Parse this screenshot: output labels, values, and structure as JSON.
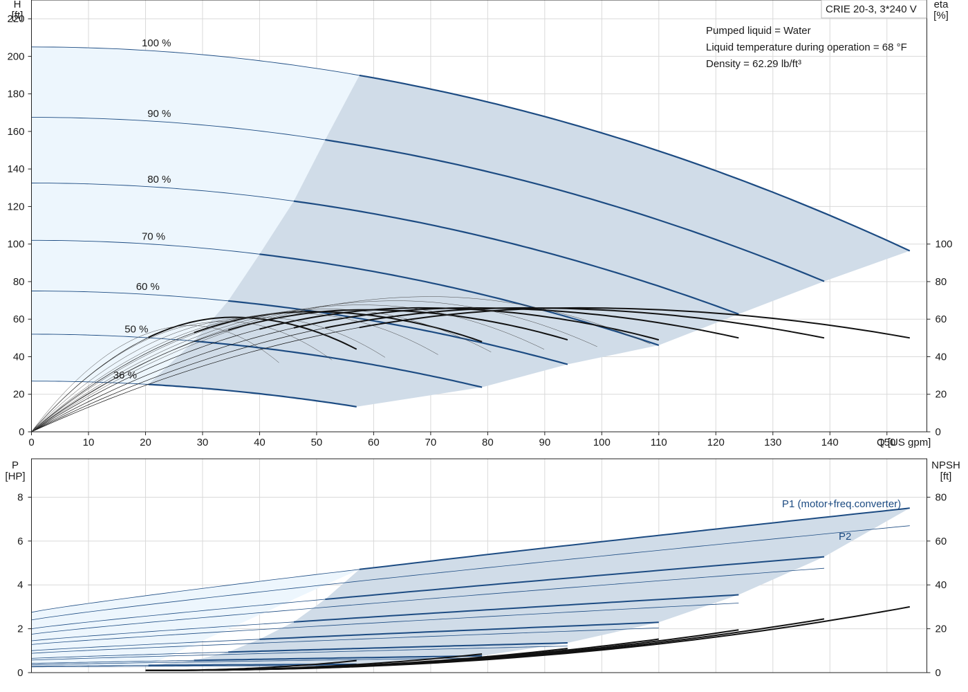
{
  "title": "CRIE 20-3, 3*240 V",
  "info_lines": [
    "Pumped liquid = Water",
    "Liquid temperature during operation = 68 °F",
    "Density = 62.29 lb/ft³"
  ],
  "colors": {
    "curve": "#1c4b82",
    "eff": "#111111",
    "light_fill": "#edf6fd",
    "dark_fill": "#d0dce8",
    "grid": "#d9d9d9"
  },
  "chart_data": [
    {
      "type": "line",
      "name": "head-efficiency",
      "xlabel": "Q [US gpm]",
      "x_ticks": [
        "0",
        "10",
        "20",
        "30",
        "40",
        "50",
        "60",
        "70",
        "80",
        "90",
        "100",
        "110",
        "120",
        "130",
        "140",
        "150"
      ],
      "xlim": [
        0,
        157
      ],
      "ylabel_left": "H\n[ft]",
      "ylim_left": [
        0,
        230
      ],
      "y_ticks_left": [
        "0",
        "20",
        "40",
        "60",
        "80",
        "100",
        "120",
        "140",
        "160",
        "180",
        "200",
        "220"
      ],
      "ylabel_right": "eta\n[%]",
      "ylim_right": [
        0,
        230
      ],
      "y_ticks_right": [
        "0",
        "20",
        "40",
        "60",
        "80",
        "100"
      ],
      "grid": true,
      "head_curves": [
        {
          "label": "100 %",
          "h0": 205,
          "k": 0.00458,
          "qmin": 57.5,
          "qmax": 154
        },
        {
          "label": "90 %",
          "h0": 167.5,
          "k": 0.00452,
          "qmin": 51.5,
          "qmax": 139
        },
        {
          "label": "80 %",
          "h0": 132.5,
          "k": 0.00454,
          "qmin": 46,
          "qmax": 124
        },
        {
          "label": "70 %",
          "h0": 102,
          "k": 0.00462,
          "qmin": 40,
          "qmax": 110
        },
        {
          "label": "60 %",
          "h0": 75,
          "k": 0.00442,
          "qmin": 34.5,
          "qmax": 94
        },
        {
          "label": "50 %",
          "h0": 52,
          "k": 0.00453,
          "qmin": 28.5,
          "qmax": 79
        },
        {
          "label": "36 %",
          "h0": 27,
          "k": 0.0042,
          "qmin": 20.5,
          "qmax": 57
        }
      ],
      "efficiency_curves": [
        {
          "qmax": 154,
          "peak": 66,
          "end": 50
        },
        {
          "qmax": 139,
          "peak": 66,
          "end": 50
        },
        {
          "qmax": 124,
          "peak": 66,
          "end": 50
        },
        {
          "qmax": 110,
          "peak": 66,
          "end": 49
        },
        {
          "qmax": 94,
          "peak": 65,
          "end": 49
        },
        {
          "qmax": 79,
          "peak": 64,
          "end": 48
        },
        {
          "qmax": 57,
          "peak": 61,
          "end": 44
        }
      ]
    },
    {
      "type": "line",
      "name": "power-npsh",
      "xlim": [
        0,
        157
      ],
      "ylabel_left": "P\n[HP]",
      "ylim_left": [
        0,
        9.75
      ],
      "y_ticks_left": [
        "0",
        "2",
        "4",
        "6",
        "8"
      ],
      "ylabel_right": "NPSH\n[ft]",
      "ylim_right": [
        0,
        97.5
      ],
      "y_ticks_right": [
        "0",
        "20",
        "40",
        "60",
        "80"
      ],
      "grid": true,
      "series": [
        {
          "name": "P1 (motor+freq.converter)"
        },
        {
          "name": "P2"
        }
      ],
      "p1_curves": [
        {
          "a": 2.75,
          "b": 4.75,
          "qmin": 57.5,
          "qmax": 154
        },
        {
          "a": 2.0,
          "b": 3.6,
          "qmin": 51.5,
          "qmax": 139
        },
        {
          "a": 1.45,
          "b": 2.55,
          "qmin": 46,
          "qmax": 124
        },
        {
          "a": 1.0,
          "b": 1.75,
          "qmin": 40,
          "qmax": 110
        },
        {
          "a": 0.65,
          "b": 1.1,
          "qmin": 34.5,
          "qmax": 94
        },
        {
          "a": 0.42,
          "b": 0.63,
          "qmin": 28.5,
          "qmax": 79
        },
        {
          "a": 0.3,
          "b": 0.2,
          "qmin": 20.5,
          "qmax": 57
        }
      ],
      "p2_curves": [
        {
          "a": 2.4,
          "b": 4.3,
          "qmin": 57.5,
          "qmax": 154
        },
        {
          "a": 1.75,
          "b": 3.3,
          "qmin": 51.5,
          "qmax": 139
        },
        {
          "a": 1.28,
          "b": 2.3,
          "qmin": 46,
          "qmax": 124
        },
        {
          "a": 0.88,
          "b": 1.57,
          "qmin": 40,
          "qmax": 110
        },
        {
          "a": 0.57,
          "b": 1.0,
          "qmin": 34.5,
          "qmax": 94
        },
        {
          "a": 0.36,
          "b": 0.57,
          "qmin": 28.5,
          "qmax": 79
        },
        {
          "a": 0.26,
          "b": 0.16,
          "qmin": 20.5,
          "qmax": 57
        }
      ],
      "npsh_qmax": [
        154,
        139,
        124,
        110,
        94,
        79,
        57
      ],
      "npsh_end": [
        30,
        24.5,
        19.5,
        15.3,
        11,
        8.5,
        5.5
      ]
    }
  ]
}
